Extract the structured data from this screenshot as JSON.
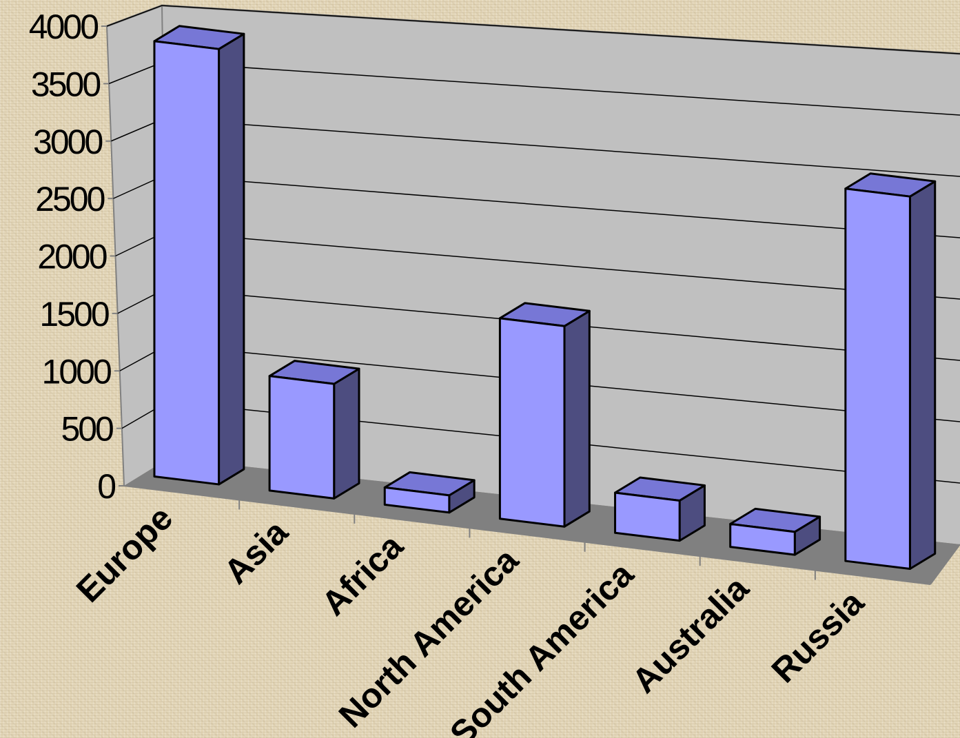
{
  "chart_data": {
    "type": "bar",
    "style": "3d-column",
    "categories": [
      "Europe",
      "Asia",
      "Africa",
      "North America",
      "South America",
      "Australia",
      "Russia"
    ],
    "values": [
      3800,
      1000,
      150,
      1750,
      350,
      200,
      3250
    ],
    "ylim": [
      0,
      4000
    ],
    "yticks": [
      "0",
      "500",
      "1000",
      "1500",
      "2000",
      "2500",
      "3000",
      "3500",
      "4000"
    ],
    "grid": true,
    "legend": "none",
    "colors": {
      "bar_front": "#9999ff",
      "bar_side": "#4d4d80",
      "bar_top": "#7777d6",
      "wall": "#c0c0c0",
      "floor": "#808080"
    }
  }
}
